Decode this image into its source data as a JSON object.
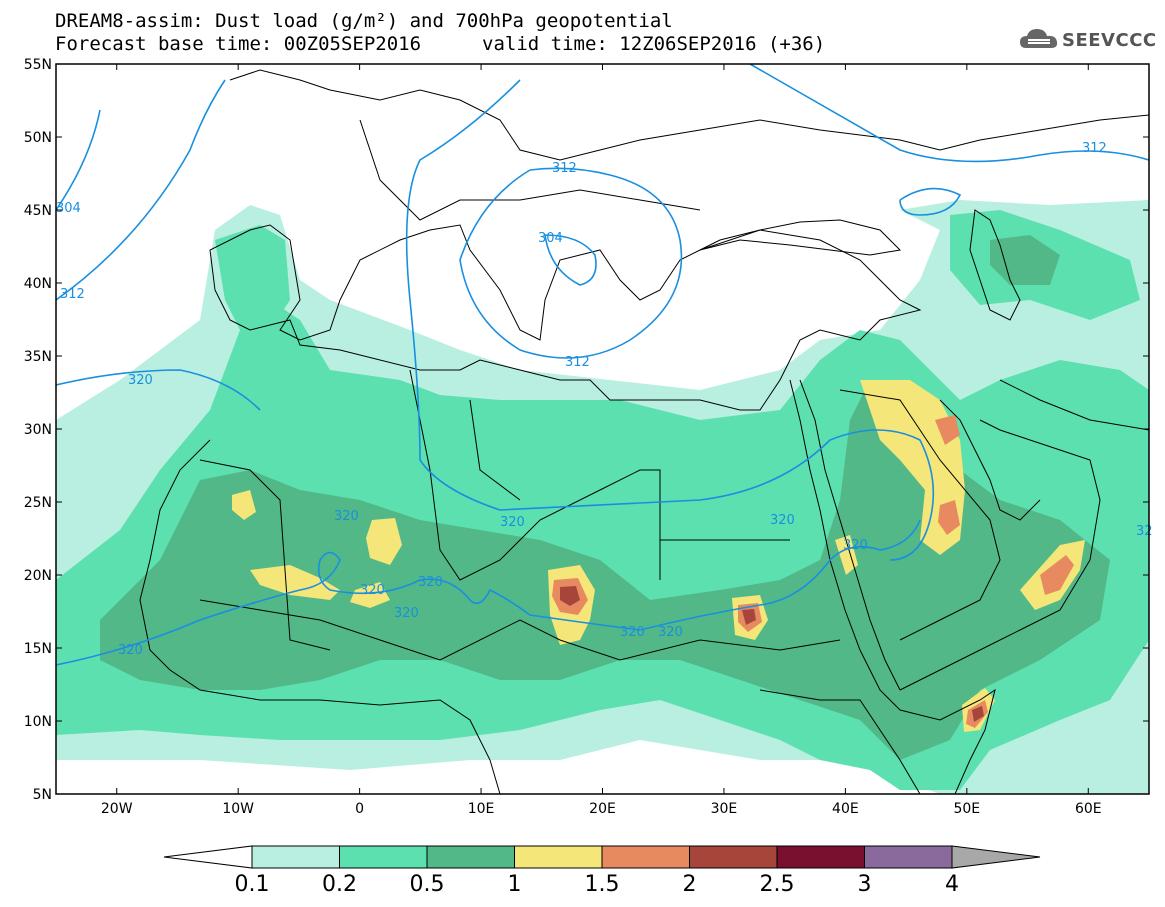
{
  "title": {
    "line1": "DREAM8-assim: Dust load (g/m²) and 700hPa geopotential",
    "line2_left": "Forecast base time: 00Z05SEP2016",
    "line2_right": "valid time: 12Z06SEP2016 (+36)"
  },
  "logo": {
    "text": "SEEVCCC",
    "icon": "cloud-icon"
  },
  "axes": {
    "lat_labels": [
      "55N",
      "50N",
      "45N",
      "40N",
      "35N",
      "30N",
      "25N",
      "20N",
      "15N",
      "10N",
      "5N"
    ],
    "lon_labels": [
      "20W",
      "10W",
      "0",
      "10E",
      "20E",
      "30E",
      "40E",
      "50E",
      "60E"
    ],
    "lon_range": [
      -25,
      65
    ],
    "lat_range": [
      5,
      55
    ]
  },
  "colorbar": {
    "labels": [
      "0.1",
      "0.2",
      "0.5",
      "1",
      "1.5",
      "2",
      "2.5",
      "3",
      "4"
    ],
    "colors": [
      "#ffffff",
      "#b9efe0",
      "#5ce0b0",
      "#52b887",
      "#f5e67a",
      "#e88a60",
      "#a6453a",
      "#7a1030",
      "#8a6a9c",
      "#a8a8a8"
    ]
  },
  "contours": {
    "labels": [
      {
        "text": "312"
      },
      {
        "text": "312"
      },
      {
        "text": "312"
      },
      {
        "text": "304"
      },
      {
        "text": "304"
      },
      {
        "text": "320"
      },
      {
        "text": "320"
      },
      {
        "text": "320"
      },
      {
        "text": "320"
      },
      {
        "text": "320"
      },
      {
        "text": "320"
      },
      {
        "text": "320"
      },
      {
        "text": "320"
      },
      {
        "text": "320"
      },
      {
        "text": "320"
      },
      {
        "text": "320"
      },
      {
        "text": "312"
      },
      {
        "text": "32"
      }
    ],
    "color": "#1a8fe0"
  }
}
